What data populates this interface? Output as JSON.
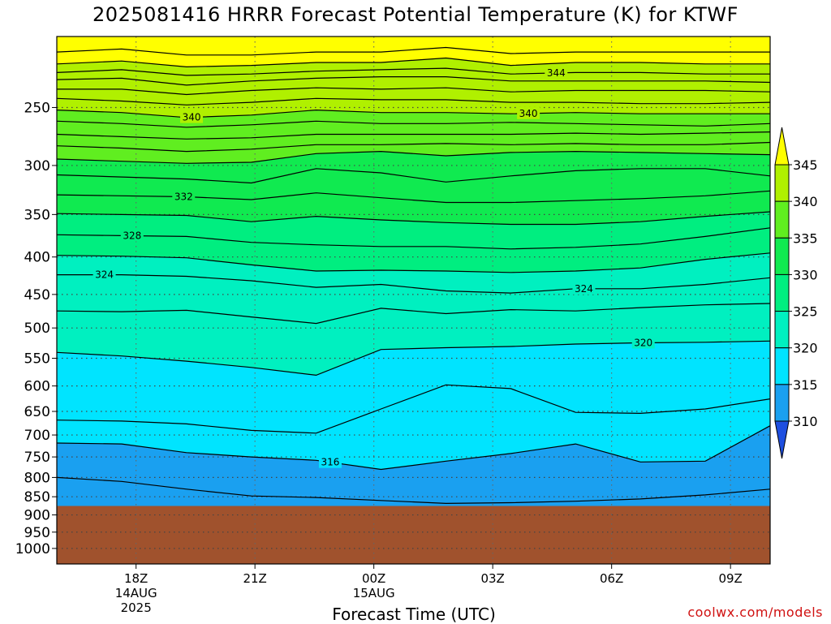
{
  "title": "2025081416 HRRR Forecast Potential Temperature (K) for KTWF",
  "credit": "coolwx.com/models",
  "chart_data": {
    "type": "heatmap",
    "title": "2025081416 HRRR Forecast Potential Temperature (K) for KTWF",
    "xlabel": "Forecast Time (UTC)",
    "ylabel": "",
    "x_axis": {
      "range_hours_from_16Z_14AUG": [
        0,
        18
      ],
      "ticks": [
        {
          "label": "18Z",
          "sub": [
            "14AUG",
            "2025"
          ],
          "hour": 2
        },
        {
          "label": "21Z",
          "sub": [],
          "hour": 5
        },
        {
          "label": "00Z",
          "sub": [
            "15AUG"
          ],
          "hour": 8
        },
        {
          "label": "03Z",
          "sub": [],
          "hour": 11
        },
        {
          "label": "06Z",
          "sub": [],
          "hour": 14
        },
        {
          "label": "09Z",
          "sub": [],
          "hour": 17
        }
      ]
    },
    "y_axis": {
      "units": "hPa",
      "log_scale": true,
      "range": [
        1050,
        200
      ],
      "ticks": [
        "250",
        "300",
        "350",
        "400",
        "450",
        "500",
        "550",
        "600",
        "650",
        "700",
        "750",
        "800",
        "850",
        "900",
        "950",
        "1000"
      ]
    },
    "surface_pressure_hPa": 875,
    "colorbar": {
      "labels": [
        "310",
        "315",
        "320",
        "325",
        "330",
        "335",
        "340",
        "345"
      ],
      "colors": [
        "#1e4fe0",
        "#1aa0f0",
        "#00e4ff",
        "#00f0c0",
        "#00ee80",
        "#10ea50",
        "#60ee20",
        "#b0f000",
        "#ffff00"
      ]
    },
    "contour_labels": [
      "344",
      "340",
      "340",
      "332",
      "328",
      "324",
      "324",
      "320",
      "316"
    ],
    "isentropes": [
      {
        "theta": 346,
        "p": [
          210,
          208,
          212,
          212,
          210,
          210,
          207,
          211,
          210,
          210,
          210,
          210
        ]
      },
      {
        "theta": 345,
        "p": [
          218,
          216,
          220,
          219,
          217,
          217,
          214,
          219,
          217,
          217,
          218,
          218
        ]
      },
      {
        "theta": 344,
        "p": [
          224,
          222,
          226,
          225,
          223,
          222,
          221,
          225,
          224,
          224,
          225,
          225
        ]
      },
      {
        "theta": 343,
        "p": [
          229,
          228,
          233,
          230,
          228,
          227,
          227,
          230,
          230,
          230,
          230,
          231
        ]
      },
      {
        "theta": 342,
        "p": [
          236,
          236,
          240,
          237,
          235,
          236,
          235,
          238,
          237,
          237,
          237,
          238
        ]
      },
      {
        "theta": 341,
        "p": [
          243,
          245,
          248,
          246,
          243,
          244,
          244,
          246,
          246,
          247,
          247,
          246
        ]
      },
      {
        "theta": 340,
        "p": [
          252,
          254,
          258,
          256,
          252,
          254,
          254,
          255,
          254,
          255,
          255,
          255
        ]
      },
      {
        "theta": 339,
        "p": [
          261,
          263,
          266,
          264,
          261,
          263,
          263,
          262,
          263,
          264,
          265,
          263
        ]
      },
      {
        "theta": 338,
        "p": [
          272,
          274,
          276,
          275,
          272,
          272,
          272,
          272,
          271,
          272,
          271,
          270
        ]
      },
      {
        "theta": 337,
        "p": [
          282,
          284,
          287,
          285,
          281,
          281,
          280,
          281,
          280,
          281,
          281,
          279
        ]
      },
      {
        "theta": 336,
        "p": [
          294,
          296,
          298,
          297,
          289,
          287,
          291,
          288,
          287,
          288,
          289,
          290
        ]
      },
      {
        "theta": 334,
        "p": [
          309,
          311,
          313,
          317,
          303,
          307,
          316,
          310,
          305,
          303,
          303,
          310
        ]
      },
      {
        "theta": 332,
        "p": [
          329,
          330,
          331,
          334,
          327,
          332,
          337,
          337,
          335,
          333,
          330,
          325
        ]
      },
      {
        "theta": 330,
        "p": [
          349,
          350,
          351,
          358,
          352,
          356,
          359,
          361,
          361,
          358,
          352,
          347
        ]
      },
      {
        "theta": 328,
        "p": [
          373,
          374,
          375,
          382,
          385,
          387,
          387,
          390,
          388,
          384,
          375,
          365
        ]
      },
      {
        "theta": 326,
        "p": [
          398,
          399,
          401,
          410,
          418,
          417,
          418,
          420,
          418,
          414,
          403,
          395
        ]
      },
      {
        "theta": 324,
        "p": [
          423,
          423,
          425,
          431,
          440,
          436,
          445,
          448,
          442,
          442,
          436,
          427
        ]
      },
      {
        "theta": 322,
        "p": [
          474,
          475,
          473,
          483,
          493,
          470,
          478,
          472,
          474,
          469,
          465,
          463
        ]
      },
      {
        "theta": 320,
        "p": [
          540,
          546,
          555,
          566,
          580,
          535,
          532,
          530,
          526,
          524,
          523,
          521
        ]
      },
      {
        "theta": 318,
        "p": [
          668,
          670,
          676,
          690,
          696,
          645,
          598,
          605,
          652,
          654,
          645,
          625
        ]
      },
      {
        "theta": 316,
        "p": [
          718,
          720,
          740,
          750,
          758,
          780,
          760,
          742,
          720,
          762,
          760,
          680
        ]
      },
      {
        "theta": 314,
        "p": [
          800,
          810,
          830,
          848,
          852,
          860,
          868,
          866,
          862,
          856,
          845,
          830
        ]
      }
    ]
  }
}
